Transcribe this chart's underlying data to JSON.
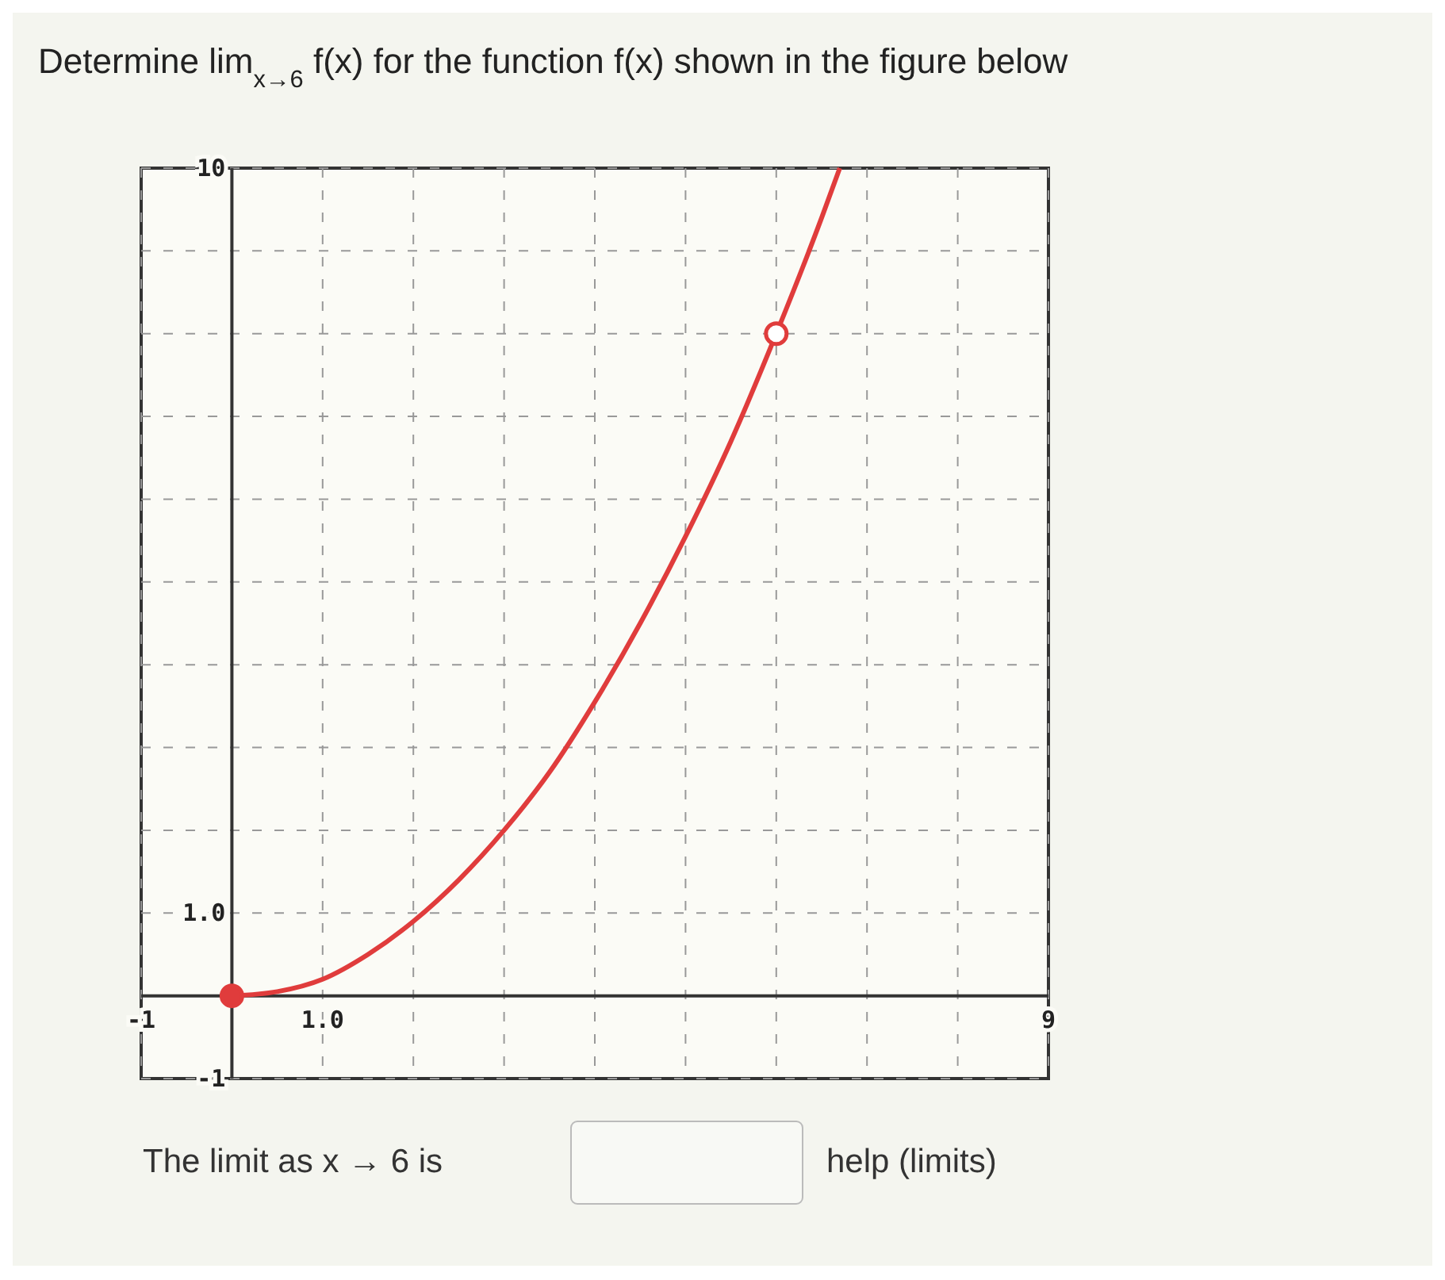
{
  "chart_data": {
    "type": "line",
    "title": "Determine lim$_{x→6}$ f(x) for the function f(x) shown in the figure below",
    "annotations": [
      "The limit as x → 6 is",
      "help (limits)"
    ],
    "xlim": [
      -1,
      9
    ],
    "ylim": [
      -1,
      10
    ],
    "xticks": [
      -1,
      {
        "value": 0,
        "label": null
      },
      {
        "value": 1,
        "label": "1.0"
      },
      {
        "value": 2,
        "label": null
      },
      {
        "value": 3,
        "label": null
      },
      {
        "value": 4,
        "label": null
      },
      {
        "value": 5,
        "label": null
      },
      {
        "value": 6,
        "label": null
      },
      {
        "value": 7,
        "label": null
      },
      {
        "value": 8,
        "label": null
      },
      9
    ],
    "yticks": [
      -1,
      {
        "value": 0,
        "label": null
      },
      {
        "value": 1,
        "label": "1.0"
      },
      {
        "value": 2,
        "label": null
      },
      {
        "value": 3,
        "label": null
      },
      {
        "value": 4,
        "label": null
      },
      {
        "value": 5,
        "label": null
      },
      {
        "value": 6,
        "label": null
      },
      {
        "value": 7,
        "label": null
      },
      {
        "value": 8,
        "label": null
      },
      {
        "value": 9,
        "label": null
      },
      10
    ],
    "grid": true,
    "line_style": "solid",
    "series": [
      {
        "color": "#e03c3c",
        "marker": "none",
        "x": [
          0,
          0.5,
          1,
          1.5,
          2,
          2.5,
          3,
          3.5,
          4,
          4.5,
          5,
          5.5,
          6,
          6.5,
          6.7
        ],
        "values": [
          0,
          0.05,
          0.2,
          0.5,
          0.9,
          1.4,
          2,
          2.7,
          3.55,
          4.5,
          5.55,
          6.7,
          8,
          9.4,
          10
        ]
      },
      {
        "type": "scatter",
        "color": "#e03c3c",
        "marker": "circle",
        "x": [
          0
        ],
        "values": [
          0
        ]
      },
      {
        "type": "scatter",
        "color": "#ffffff",
        "marker": "circle",
        "x": [
          6
        ],
        "values": [
          8
        ]
      }
    ]
  }
}
